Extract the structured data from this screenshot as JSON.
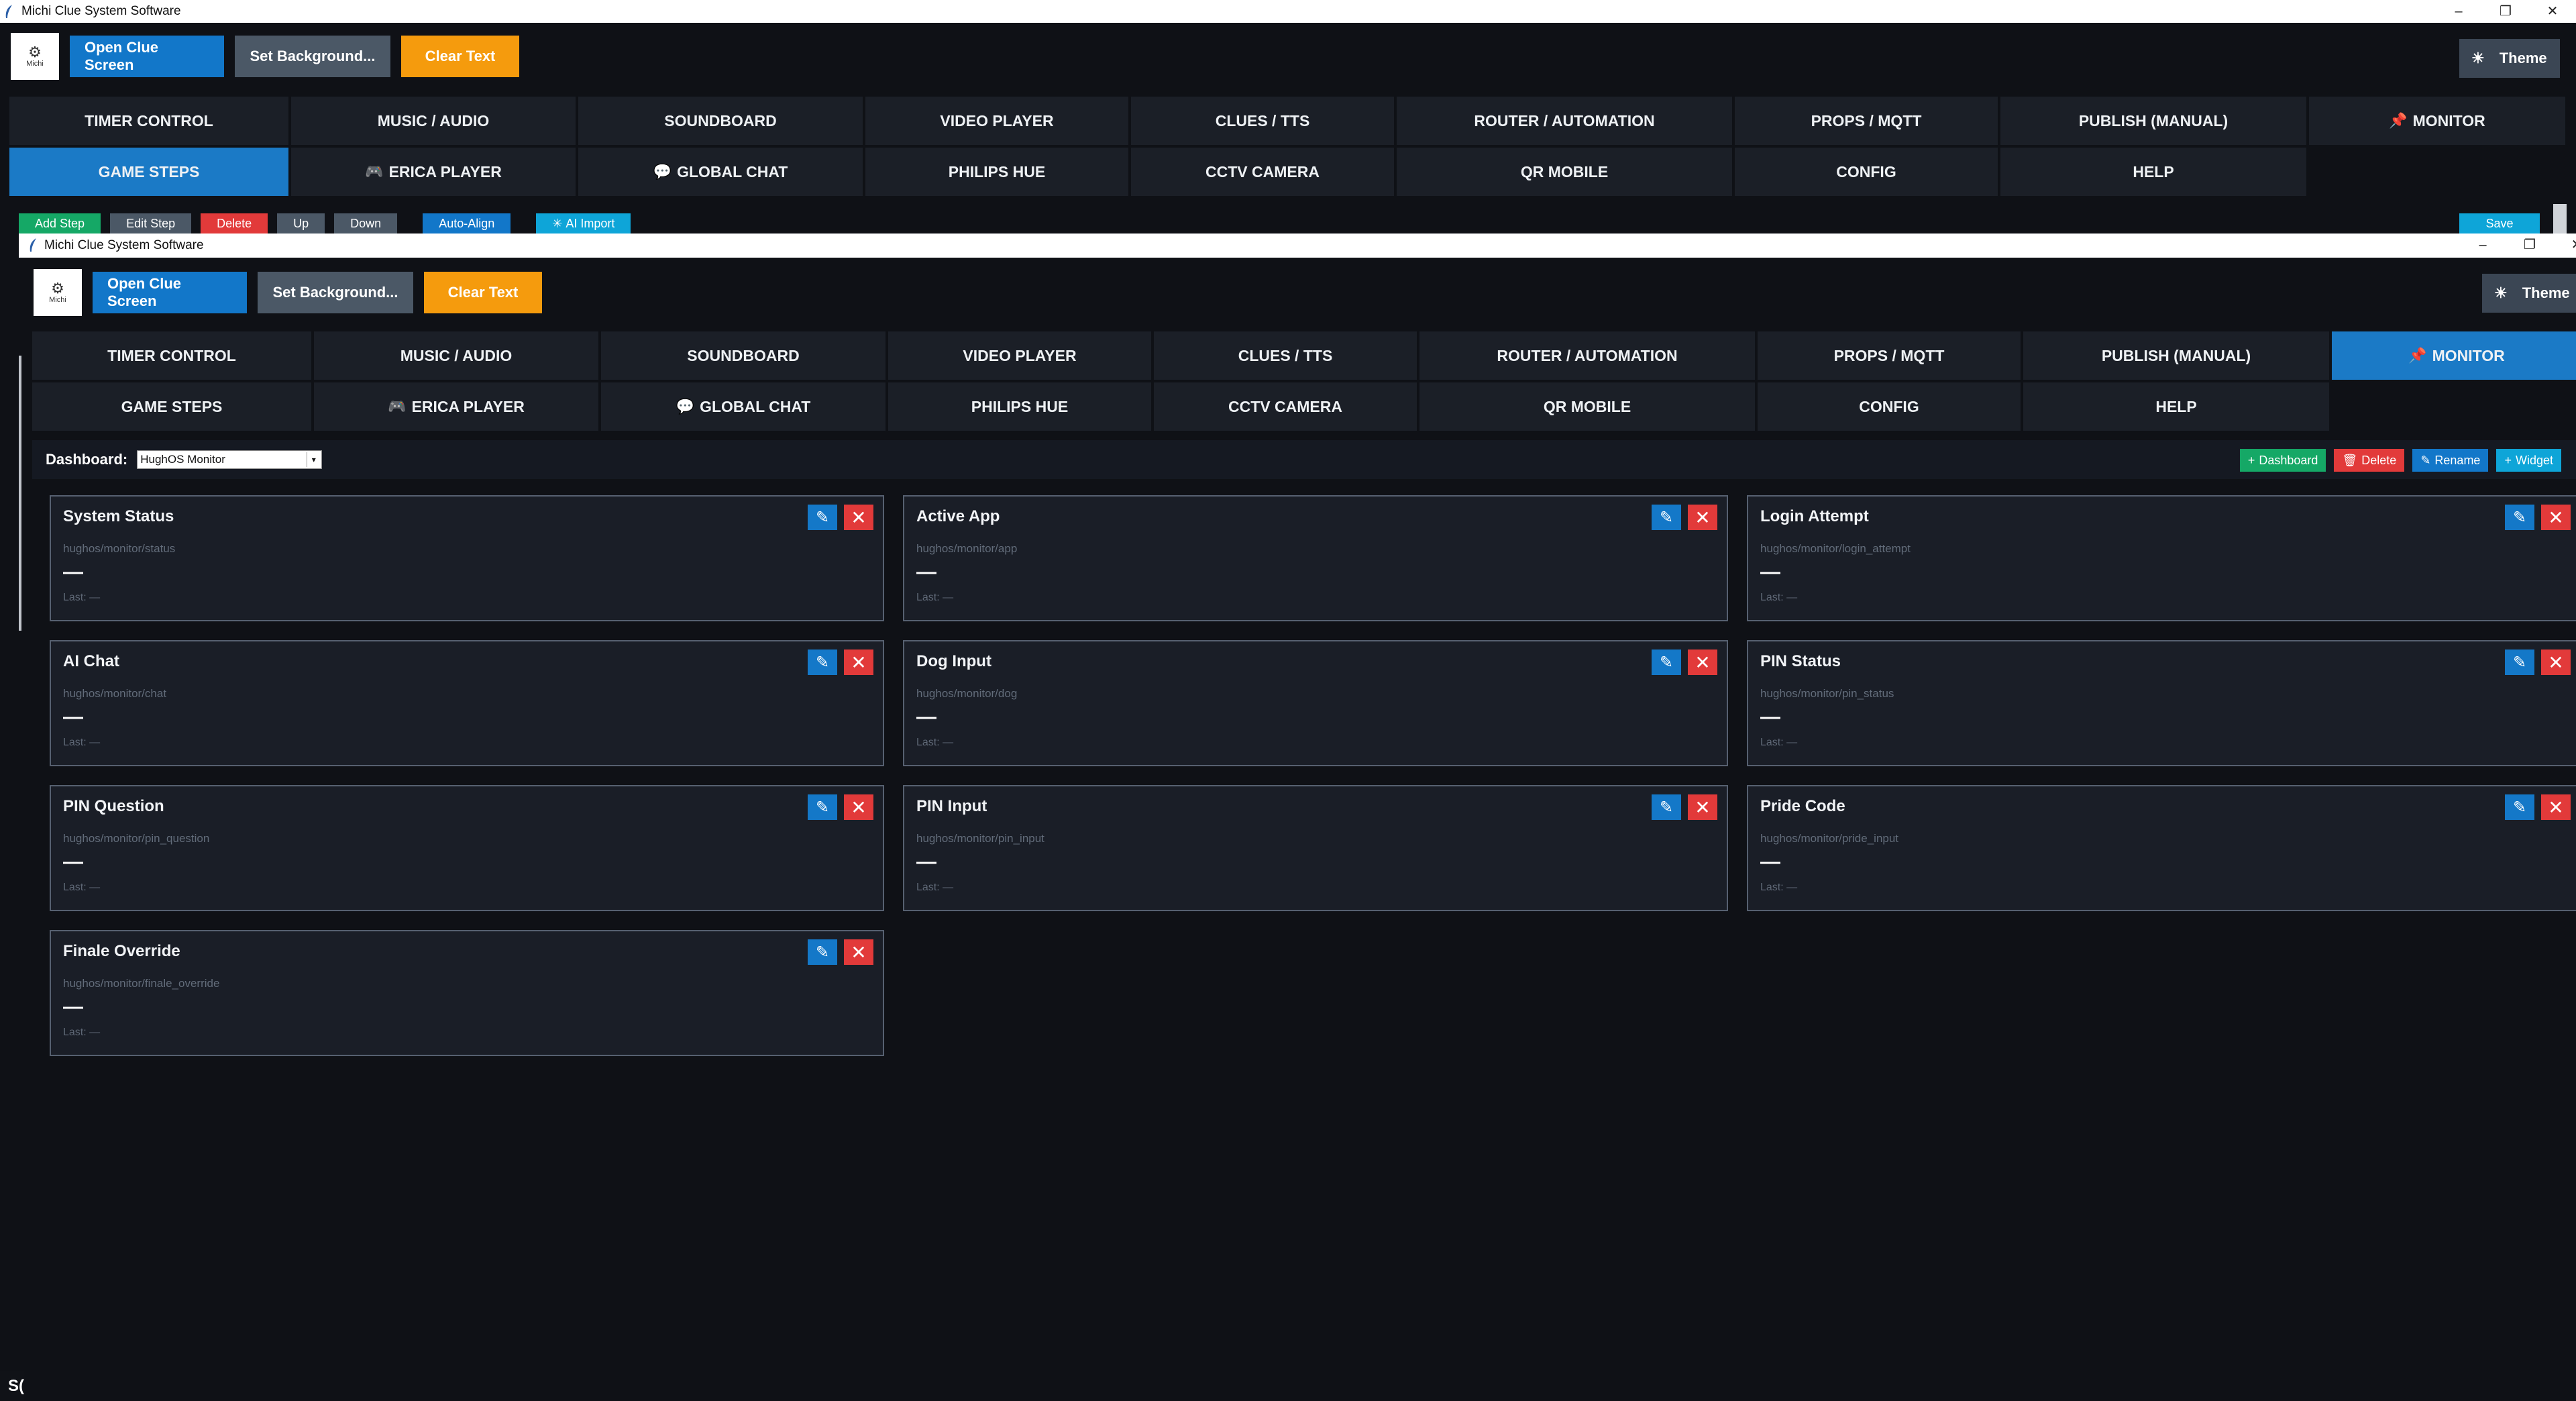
{
  "app_title": "Michi Clue System Software",
  "window_controls": [
    "–",
    "❐",
    "✕"
  ],
  "logo_text": "Michi",
  "toolbar": {
    "open_clue_screen": "Open Clue Screen",
    "set_background": "Set Background...",
    "clear_text": "Clear Text",
    "theme": "Theme"
  },
  "nav_row1": [
    {
      "label": "TIMER CONTROL",
      "icon": ""
    },
    {
      "label": "MUSIC / AUDIO",
      "icon": ""
    },
    {
      "label": "SOUNDBOARD",
      "icon": ""
    },
    {
      "label": "VIDEO PLAYER",
      "icon": ""
    },
    {
      "label": "CLUES / TTS",
      "icon": ""
    },
    {
      "label": "ROUTER / AUTOMATION",
      "icon": ""
    },
    {
      "label": "PROPS / MQTT",
      "icon": ""
    },
    {
      "label": "PUBLISH (MANUAL)",
      "icon": ""
    },
    {
      "label": "MONITOR",
      "icon": "pin-icon"
    }
  ],
  "nav_row2": [
    {
      "label": "GAME STEPS",
      "icon": ""
    },
    {
      "label": "ERICA PLAYER",
      "icon": "gamepad-icon"
    },
    {
      "label": "GLOBAL CHAT",
      "icon": "chat-icon"
    },
    {
      "label": "PHILIPS HUE",
      "icon": ""
    },
    {
      "label": "CCTV CAMERA",
      "icon": ""
    },
    {
      "label": "QR MOBILE",
      "icon": ""
    },
    {
      "label": "CONFIG",
      "icon": ""
    },
    {
      "label": "HELP",
      "icon": ""
    }
  ],
  "back_window": {
    "active_tab": "GAME STEPS",
    "step_buttons": [
      {
        "label": "Add Step",
        "color": "#15a866"
      },
      {
        "label": "Edit Step",
        "color": "#4b5866"
      },
      {
        "label": "Delete",
        "color": "#e23a3a"
      },
      {
        "label": "Up",
        "color": "#4b5866"
      },
      {
        "label": "Down",
        "color": "#4b5866"
      },
      {
        "label": "Auto-Align",
        "color": "#1277c9"
      },
      {
        "label": "AI Import",
        "color": "#0ea5d8"
      }
    ],
    "save_label": "Save"
  },
  "front_window": {
    "active_tab": "MONITOR",
    "dashboard": {
      "label": "Dashboard:",
      "selected": "HughOS Monitor",
      "actions": [
        {
          "label": "Dashboard",
          "prefix": "+",
          "color": "#15a866"
        },
        {
          "label": "Delete",
          "prefix": "🗑",
          "color": "#e23a3a"
        },
        {
          "label": "Rename",
          "prefix": "✎",
          "color": "#1277c9"
        },
        {
          "label": "Widget",
          "prefix": "+",
          "color": "#0ea5d8"
        }
      ]
    },
    "widgets": [
      {
        "title": "System Status",
        "topic": "hughos/monitor/status",
        "value": "—",
        "last": "Last: —"
      },
      {
        "title": "Active App",
        "topic": "hughos/monitor/app",
        "value": "—",
        "last": "Last: —"
      },
      {
        "title": "Login Attempt",
        "topic": "hughos/monitor/login_attempt",
        "value": "—",
        "last": "Last: —"
      },
      {
        "title": "AI Chat",
        "topic": "hughos/monitor/chat",
        "value": "—",
        "last": "Last: —"
      },
      {
        "title": "Dog Input",
        "topic": "hughos/monitor/dog",
        "value": "—",
        "last": "Last: —"
      },
      {
        "title": "PIN Status",
        "topic": "hughos/monitor/pin_status",
        "value": "—",
        "last": "Last: —"
      },
      {
        "title": "PIN Question",
        "topic": "hughos/monitor/pin_question",
        "value": "—",
        "last": "Last: —"
      },
      {
        "title": "PIN Input",
        "topic": "hughos/monitor/pin_input",
        "value": "—",
        "last": "Last: —"
      },
      {
        "title": "Pride Code",
        "topic": "hughos/monitor/pride_input",
        "value": "—",
        "last": "Last: —"
      },
      {
        "title": "Finale Override",
        "topic": "hughos/monitor/finale_override",
        "value": "—",
        "last": "Last: —"
      }
    ]
  },
  "status_fragment": "S("
}
